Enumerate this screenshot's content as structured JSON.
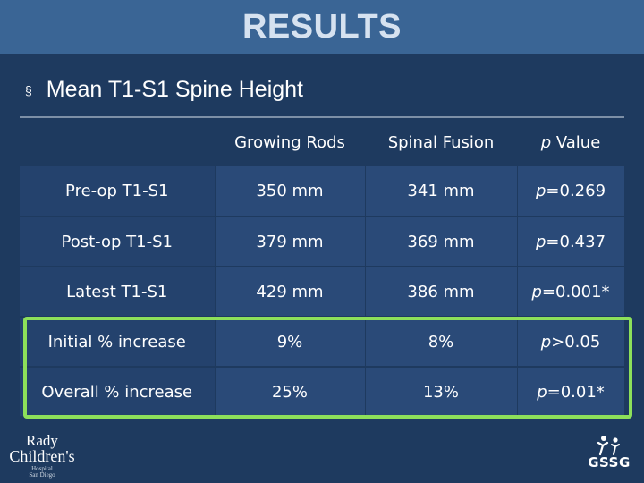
{
  "slide": {
    "title": "RESULTS",
    "bullet_symbol": "§",
    "bullet_text": "Mean T1-S1 Spine Height"
  },
  "table": {
    "headers": [
      "",
      "Growing Rods",
      "Spinal Fusion",
      "Value"
    ],
    "header_p": "p",
    "rows": [
      {
        "label": "Pre-op T1-S1",
        "growing_rods": "350 mm",
        "spinal_fusion": "341 mm",
        "p_prefix": "p",
        "p_value": "=0.269"
      },
      {
        "label": "Post-op T1-S1",
        "growing_rods": "379 mm",
        "spinal_fusion": "369 mm",
        "p_prefix": "p",
        "p_value": "=0.437"
      },
      {
        "label": "Latest T1-S1",
        "growing_rods": "429 mm",
        "spinal_fusion": "386 mm",
        "p_prefix": "p",
        "p_value": "=0.001*"
      },
      {
        "label": "Initial % increase",
        "growing_rods": "9%",
        "spinal_fusion": "8%",
        "p_prefix": "p",
        "p_value": ">0.05"
      },
      {
        "label": "Overall % increase",
        "growing_rods": "25%",
        "spinal_fusion": "13%",
        "p_prefix": "p",
        "p_value": "=0.01*"
      }
    ]
  },
  "logos": {
    "left": {
      "line1": "Rady",
      "line2": "Children's",
      "line3": "Hospital",
      "line4": "San Diego"
    },
    "right": {
      "name": "GSSG",
      "icon": "figures-logo-icon"
    }
  },
  "colors": {
    "background": "#1e3a5f",
    "title_bar": "#3a6595",
    "row_fill": "#2a4a78",
    "highlight": "#8de05a"
  }
}
